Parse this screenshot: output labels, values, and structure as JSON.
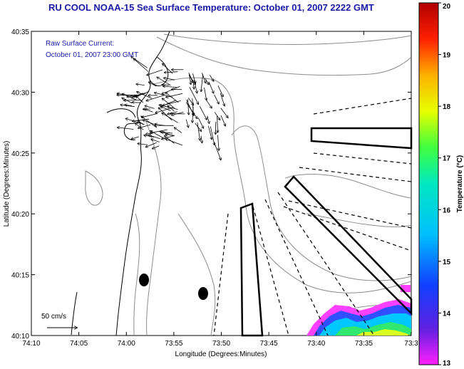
{
  "title": "RU COOL  NOAA-15  Sea Surface Temperature:  October 01, 2007 2222 GMT",
  "annotation": {
    "line1": "Raw Surface Current:",
    "line2": "October 01, 2007 23:00 GMT"
  },
  "scale": {
    "label": "50 cm/s"
  },
  "axes": {
    "xlabel": "Longitude (Degrees:Minutes)",
    "ylabel": "Latitude (Degrees:Minutes)",
    "xticks": [
      "74:10",
      "74:05",
      "74:00",
      "73:55",
      "73:50",
      "73:45",
      "73:40",
      "73:35",
      "73:3"
    ],
    "yticks": [
      "40:35",
      "40:30",
      "40:25",
      "40:20",
      "40:15",
      "40:10"
    ]
  },
  "colorbar": {
    "label": "Temperature (°C)",
    "ticks": [
      "20",
      "19",
      "18",
      "17",
      "16",
      "15",
      "14",
      "13"
    ],
    "range": [
      13,
      20
    ]
  },
  "colors": {
    "title": "#1a1aa6",
    "coast": "#000000",
    "bathymetry": "#8c8c8c"
  }
}
